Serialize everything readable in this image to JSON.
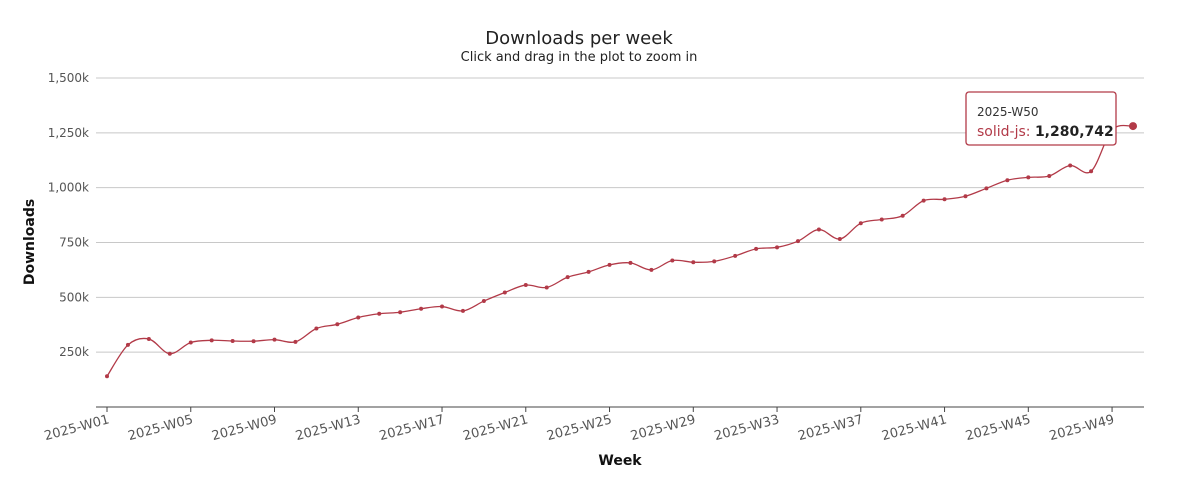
{
  "chart_data": {
    "type": "line",
    "title": "Downloads per week",
    "subtitle": "Click and drag in the plot to zoom in",
    "xlabel": "Week",
    "ylabel": "Downloads",
    "ylim": [
      0,
      1500000
    ],
    "y_ticks": [
      {
        "value": 250000,
        "label": "250k"
      },
      {
        "value": 500000,
        "label": "500k"
      },
      {
        "value": 750000,
        "label": "750k"
      },
      {
        "value": 1000000,
        "label": "1,000k"
      },
      {
        "value": 1250000,
        "label": "1,250k"
      },
      {
        "value": 1500000,
        "label": "1,500k"
      }
    ],
    "x_tick_labels": [
      "2025-W01",
      "2025-W05",
      "2025-W09",
      "2025-W13",
      "2025-W17",
      "2025-W21",
      "2025-W25",
      "2025-W29",
      "2025-W33",
      "2025-W37",
      "2025-W41",
      "2025-W45",
      "2025-W49"
    ],
    "x": [
      "2025-W01",
      "2025-W02",
      "2025-W03",
      "2025-W04",
      "2025-W05",
      "2025-W06",
      "2025-W07",
      "2025-W08",
      "2025-W09",
      "2025-W10",
      "2025-W11",
      "2025-W12",
      "2025-W13",
      "2025-W14",
      "2025-W15",
      "2025-W16",
      "2025-W17",
      "2025-W18",
      "2025-W19",
      "2025-W20",
      "2025-W21",
      "2025-W22",
      "2025-W23",
      "2025-W24",
      "2025-W25",
      "2025-W26",
      "2025-W27",
      "2025-W28",
      "2025-W29",
      "2025-W30",
      "2025-W31",
      "2025-W32",
      "2025-W33",
      "2025-W34",
      "2025-W35",
      "2025-W36",
      "2025-W37",
      "2025-W38",
      "2025-W39",
      "2025-W40",
      "2025-W41",
      "2025-W42",
      "2025-W43",
      "2025-W44",
      "2025-W45",
      "2025-W46",
      "2025-W47",
      "2025-W48",
      "2025-W49",
      "2025-W50"
    ],
    "series": [
      {
        "name": "solid-js",
        "color": "#b23a48",
        "values": [
          140000,
          283000,
          310000,
          243000,
          294000,
          304000,
          301000,
          300000,
          307000,
          297000,
          358000,
          377000,
          408000,
          425000,
          432000,
          448000,
          458000,
          438000,
          483000,
          522000,
          556000,
          545000,
          592000,
          616000,
          648000,
          657000,
          625000,
          668000,
          660000,
          664000,
          689000,
          721000,
          728000,
          756000,
          809000,
          766000,
          838000,
          855000,
          872000,
          941000,
          947000,
          961000,
          997000,
          1034000,
          1047000,
          1053000,
          1101000,
          1075000,
          1263000,
          1280742
        ]
      }
    ],
    "grid": true,
    "legend": "none",
    "tooltip": {
      "header": "2025-W50",
      "series_name": "solid-js",
      "separator": ": ",
      "value_text": "1,280,742"
    }
  }
}
